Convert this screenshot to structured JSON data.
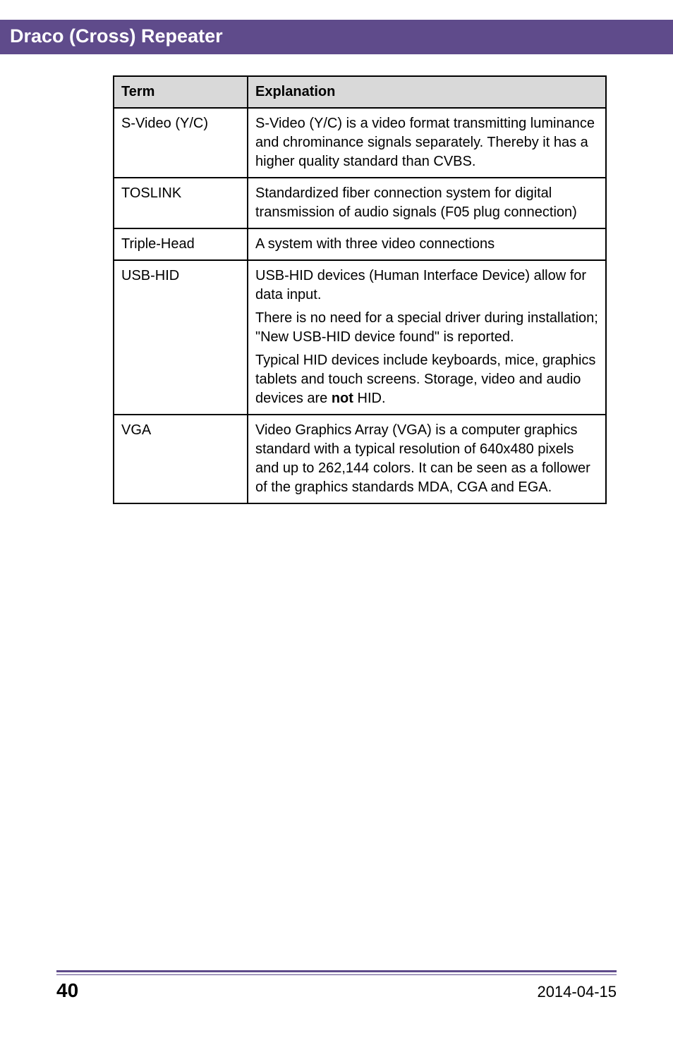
{
  "header": {
    "title": "Draco (Cross) Repeater"
  },
  "table": {
    "head": {
      "term": "Term",
      "explanation": "Explanation"
    },
    "rows": [
      {
        "term": "S-Video (Y/C)",
        "explanation": [
          {
            "type": "plain",
            "text": "S-Video (Y/C) is a video format transmitting luminance and chrominance signals separately. Thereby it has a higher quality standard than CVBS."
          }
        ]
      },
      {
        "term": "TOSLINK",
        "explanation": [
          {
            "type": "plain",
            "text": "Standardized fiber connection system for digital transmission of audio signals (F05 plug connection)"
          }
        ]
      },
      {
        "term": "Triple-Head",
        "explanation": [
          {
            "type": "plain",
            "text": "A system with three video connections"
          }
        ]
      },
      {
        "term": "USB-HID",
        "explanation": [
          {
            "type": "plain",
            "text": "USB-HID devices (Human Interface Device) allow for data input."
          },
          {
            "type": "plain",
            "text": "There is no need for a special driver during installation; \"New USB-HID device found\" is reported."
          },
          {
            "type": "not",
            "pre": "Typical HID devices include keyboards, mice, graphics tablets and touch screens. Storage, video and audio devices are ",
            "bold": "not",
            "post": " HID."
          }
        ]
      },
      {
        "term": "VGA",
        "explanation": [
          {
            "type": "plain",
            "text": "Video Graphics Array (VGA) is a computer graphics standard with a typical resolution of 640x480 pixels and up to 262,144 colors. It can be seen as a follower of the graphics standards MDA, CGA and EGA."
          }
        ]
      }
    ]
  },
  "footer": {
    "page": "40",
    "date": "2014-04-15"
  }
}
